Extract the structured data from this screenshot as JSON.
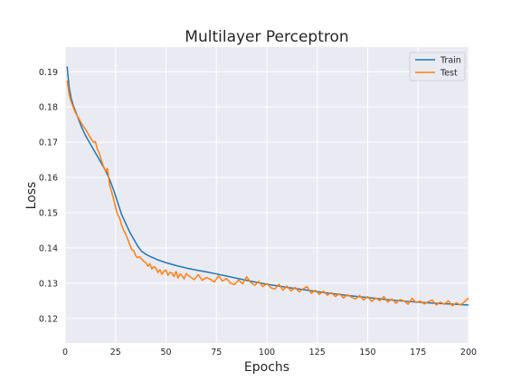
{
  "chart_data": {
    "type": "line",
    "title": "Multilayer Perceptron",
    "xlabel": "Epochs",
    "ylabel": "Loss",
    "xlim": [
      0,
      200
    ],
    "ylim": [
      0.113,
      0.197
    ],
    "xticks": [
      0,
      25,
      50,
      75,
      100,
      125,
      150,
      175,
      200
    ],
    "yticks": [
      0.12,
      0.13,
      0.14,
      0.15,
      0.16,
      0.17,
      0.18,
      0.19
    ],
    "grid": true,
    "legend_position": "top-right",
    "series": [
      {
        "name": "Train",
        "color": "#1f77b4",
        "x": [
          1,
          2,
          3,
          4,
          5,
          6,
          8,
          10,
          12,
          14,
          16,
          18,
          20,
          22,
          24,
          26,
          28,
          30,
          32,
          34,
          36,
          38,
          40,
          42,
          44,
          46,
          48,
          50,
          55,
          60,
          65,
          70,
          75,
          80,
          85,
          90,
          95,
          100,
          110,
          120,
          130,
          140,
          150,
          160,
          170,
          180,
          190,
          200
        ],
        "values": [
          0.1915,
          0.1855,
          0.1825,
          0.1805,
          0.179,
          0.1775,
          0.1745,
          0.172,
          0.17,
          0.168,
          0.166,
          0.164,
          0.162,
          0.1595,
          0.1565,
          0.153,
          0.1495,
          0.147,
          0.1445,
          0.1425,
          0.1405,
          0.139,
          0.1382,
          0.1376,
          0.1371,
          0.1366,
          0.1362,
          0.1358,
          0.135,
          0.1343,
          0.1337,
          0.1332,
          0.1326,
          0.132,
          0.1314,
          0.1308,
          0.1302,
          0.1297,
          0.1288,
          0.128,
          0.1272,
          0.1265,
          0.1259,
          0.1253,
          0.1248,
          0.1244,
          0.1241,
          0.1238
        ]
      },
      {
        "name": "Test",
        "color": "#ff7f0e",
        "x": [
          1,
          2,
          3,
          4,
          5,
          6,
          7,
          8,
          9,
          10,
          11,
          12,
          13,
          14,
          15,
          16,
          17,
          18,
          19,
          20,
          21,
          22,
          23,
          24,
          25,
          26,
          27,
          28,
          29,
          30,
          31,
          32,
          33,
          34,
          35,
          36,
          37,
          38,
          39,
          40,
          41,
          42,
          43,
          44,
          45,
          46,
          47,
          48,
          49,
          50,
          51,
          52,
          53,
          54,
          55,
          56,
          57,
          58,
          59,
          60,
          62,
          64,
          66,
          68,
          70,
          72,
          74,
          76,
          78,
          80,
          82,
          84,
          86,
          88,
          90,
          92,
          94,
          96,
          98,
          100,
          102,
          104,
          106,
          108,
          110,
          112,
          114,
          116,
          118,
          120,
          122,
          124,
          126,
          128,
          130,
          132,
          134,
          136,
          138,
          140,
          142,
          144,
          146,
          148,
          150,
          152,
          154,
          156,
          158,
          160,
          162,
          164,
          166,
          168,
          170,
          172,
          174,
          176,
          178,
          180,
          182,
          184,
          186,
          188,
          190,
          192,
          194,
          196,
          198,
          200
        ],
        "values": [
          0.1875,
          0.1835,
          0.1815,
          0.18,
          0.1785,
          0.1775,
          0.1765,
          0.1755,
          0.1745,
          0.1738,
          0.1728,
          0.1718,
          0.1708,
          0.17,
          0.1702,
          0.168,
          0.1668,
          0.1648,
          0.1632,
          0.1618,
          0.1625,
          0.158,
          0.156,
          0.154,
          0.1515,
          0.1495,
          0.1485,
          0.1465,
          0.145,
          0.144,
          0.1425,
          0.141,
          0.1395,
          0.1392,
          0.1378,
          0.1372,
          0.1375,
          0.1368,
          0.1362,
          0.1358,
          0.1348,
          0.1355,
          0.134,
          0.1347,
          0.1343,
          0.133,
          0.1338,
          0.1325,
          0.1334,
          0.1337,
          0.1322,
          0.1331,
          0.1328,
          0.1319,
          0.1333,
          0.1315,
          0.1326,
          0.1321,
          0.1312,
          0.1327,
          0.1318,
          0.131,
          0.1324,
          0.1308,
          0.1316,
          0.1311,
          0.1303,
          0.1321,
          0.1306,
          0.1313,
          0.13,
          0.1296,
          0.1309,
          0.1298,
          0.1318,
          0.1302,
          0.1294,
          0.1305,
          0.129,
          0.1299,
          0.1287,
          0.1283,
          0.1297,
          0.128,
          0.1292,
          0.1278,
          0.1288,
          0.1275,
          0.1284,
          0.129,
          0.1271,
          0.128,
          0.1268,
          0.1277,
          0.1266,
          0.1273,
          0.1262,
          0.127,
          0.1258,
          0.1267,
          0.126,
          0.1255,
          0.1265,
          0.1252,
          0.1262,
          0.1248,
          0.1258,
          0.125,
          0.1262,
          0.1246,
          0.1255,
          0.1243,
          0.1253,
          0.125,
          0.124,
          0.1257,
          0.1245,
          0.1249,
          0.1241,
          0.1247,
          0.1252,
          0.1238,
          0.1246,
          0.124,
          0.125,
          0.1236,
          0.1244,
          0.1238,
          0.1247,
          0.1258
        ]
      }
    ]
  }
}
